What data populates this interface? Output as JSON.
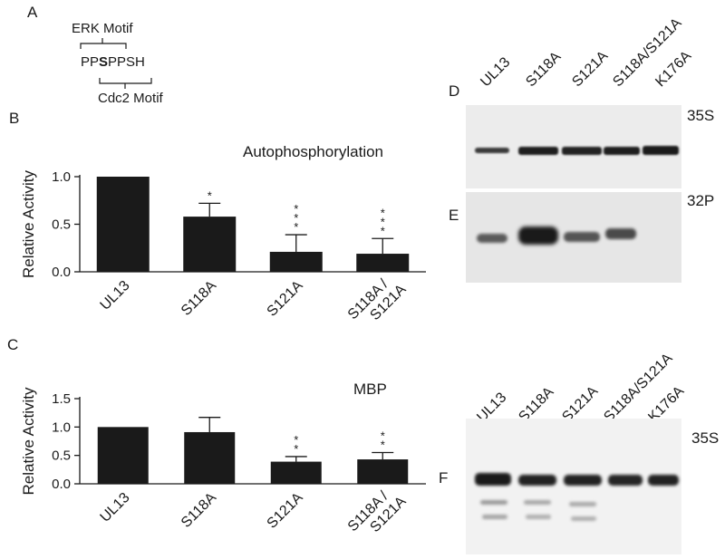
{
  "panels": {
    "a": "A",
    "b": "B",
    "c": "C",
    "d": "D",
    "e": "E",
    "f": "F"
  },
  "motif": {
    "erk": "ERK Motif",
    "seq_pre": "PP",
    "seq_bold": "S",
    "seq_post": "PPSH",
    "cdc2": "Cdc2 Motif"
  },
  "blots": {
    "lanes": [
      "UL13",
      "S118A",
      "S121A",
      "S118A/S121A",
      "K176A"
    ],
    "label_35s": "35S",
    "label_32p": "32P"
  },
  "chart_data": [
    {
      "type": "bar",
      "title": "Autophosphorylation",
      "ylabel": "Relative Activity",
      "categories": [
        "UL13",
        "S118A",
        "S121A",
        "S118A / S121A"
      ],
      "values": [
        1.0,
        0.58,
        0.21,
        0.19
      ],
      "errors": [
        0.0,
        0.14,
        0.18,
        0.16
      ],
      "significance": [
        "",
        "*",
        "***",
        "***"
      ],
      "ylim": [
        0,
        1.0
      ],
      "yticks": [
        "0.0",
        "0.5",
        "1.0"
      ]
    },
    {
      "type": "bar",
      "title": "MBP",
      "ylabel": "Relative Activity",
      "categories": [
        "UL13",
        "S118A",
        "S121A",
        "S118A / S121A"
      ],
      "values": [
        1.0,
        0.91,
        0.39,
        0.43
      ],
      "errors": [
        0.0,
        0.26,
        0.09,
        0.12
      ],
      "significance": [
        "",
        "",
        "**",
        "**"
      ],
      "ylim": [
        0,
        1.5
      ],
      "yticks": [
        "0.0",
        "0.5",
        "1.0",
        "1.5"
      ]
    }
  ]
}
